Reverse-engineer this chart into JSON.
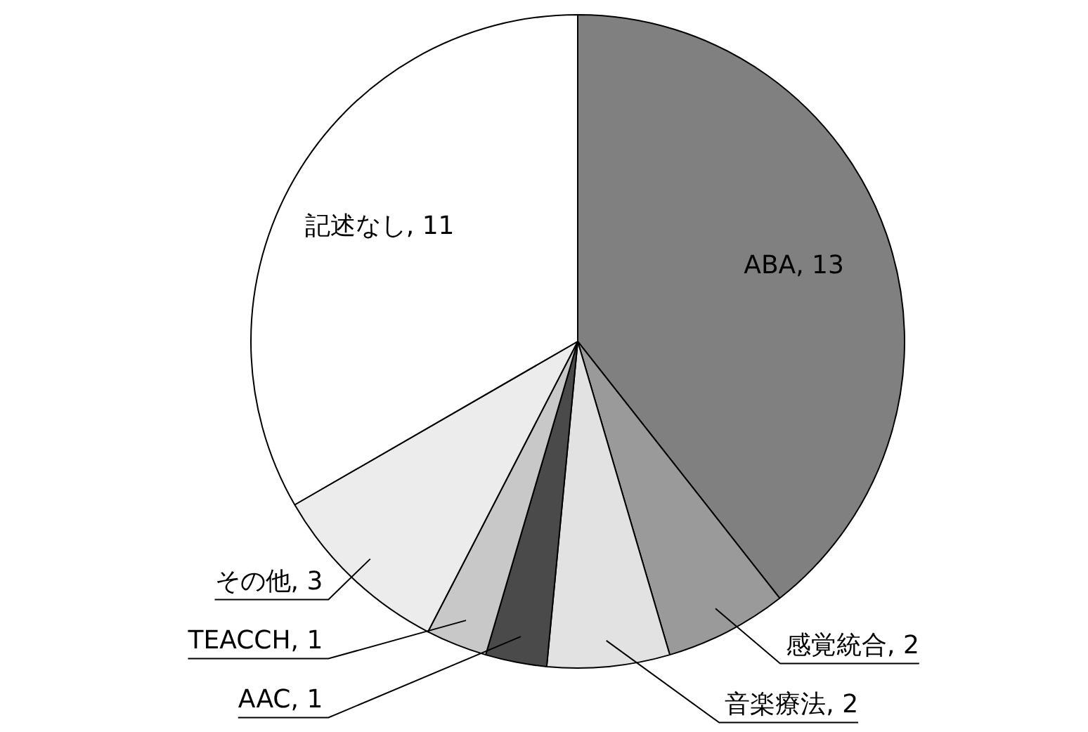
{
  "chart_data": {
    "type": "pie",
    "categories": [
      "ABA",
      "感覚統合",
      "音楽療法",
      "AAC",
      "TEACCH",
      "その他",
      "記述なし"
    ],
    "values": [
      13,
      2,
      2,
      1,
      1,
      3,
      11
    ],
    "colors": [
      "#808080",
      "#9a9a9a",
      "#e2e2e2",
      "#4a4a4a",
      "#c8c8c8",
      "#ececec",
      "#ffffff"
    ],
    "value_labels": [
      ", 13",
      ", 2",
      ", 2",
      ", 1",
      ", 1",
      ", 3",
      ", 11"
    ],
    "legend": false
  }
}
